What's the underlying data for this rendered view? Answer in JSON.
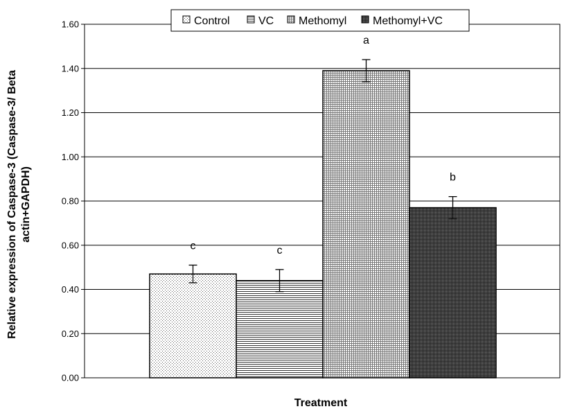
{
  "chart_data": {
    "type": "bar",
    "title": "",
    "xlabel": "Treatment",
    "ylabel_lines": [
      "Relative expression of Caspase-3 (Caspase-3/ Beta",
      "actin+GAPDH)"
    ],
    "ylim": [
      0,
      1.6
    ],
    "ytick_step": 0.2,
    "ytick_labels": [
      "0.00",
      "0.20",
      "0.40",
      "0.60",
      "0.80",
      "1.00",
      "1.20",
      "1.40",
      "1.60"
    ],
    "grid": "horizontal",
    "legend_position": "top",
    "series": [
      {
        "name": "Control",
        "value": 0.47,
        "error": 0.04,
        "label": "c",
        "pattern": "dots"
      },
      {
        "name": "VC",
        "value": 0.44,
        "error": 0.05,
        "label": "c",
        "pattern": "hlines"
      },
      {
        "name": "Methomyl",
        "value": 1.39,
        "error": 0.05,
        "label": "a",
        "pattern": "grid"
      },
      {
        "name": "Methomyl+VC",
        "value": 0.77,
        "error": 0.05,
        "label": "b",
        "pattern": "dense"
      }
    ]
  }
}
